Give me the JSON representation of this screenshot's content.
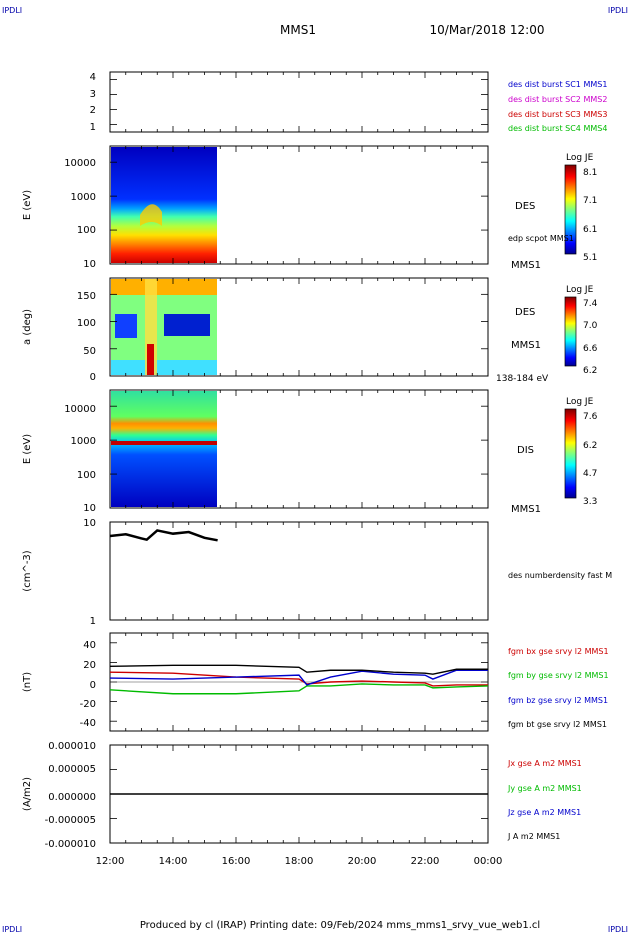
{
  "header": {
    "logo_left": "IPDLI",
    "logo_right": "IPDLI",
    "title": "MMS1",
    "datetime": "10/Mar/2018 12:00"
  },
  "footer": {
    "logo_left": "IPDLI",
    "logo_right": "IPDLI",
    "text": "Produced by cl (IRAP)   Printing date: 09/Feb/2024   mms_mms1_srvy_vue_web1.cl"
  },
  "colors": {
    "blue": "#0000cc",
    "magenta": "#cc00cc",
    "red": "#cc0000",
    "green": "#00bb00",
    "black": "#000000",
    "frame": "#000000"
  },
  "chart_data": [
    {
      "type": "line",
      "panel": "availability",
      "ylim": [
        0.5,
        4.5
      ],
      "yticks": [
        "1",
        "2",
        "3",
        "4"
      ],
      "ylabel": "",
      "series": [
        {
          "name": "des dist burst SC1 MMS1",
          "color": "#0000cc",
          "values": []
        },
        {
          "name": "des dist burst SC2 MMS2",
          "color": "#cc00cc",
          "values": []
        },
        {
          "name": "des dist burst SC3 MMS3",
          "color": "#cc0000",
          "values": []
        },
        {
          "name": "des dist burst SC4 MMS4",
          "color": "#00bb00",
          "values": []
        }
      ]
    },
    {
      "type": "heatmap",
      "panel": "des-energy",
      "ylabel": "E (eV)",
      "yscale": "log",
      "yticks": [
        "10",
        "100",
        "1000",
        "10000"
      ],
      "ylim": [
        10,
        30000
      ],
      "data_x_range": [
        "12:00",
        "15:25"
      ],
      "right_labels": [
        "DES",
        "edp scpot MMS1",
        "MMS1"
      ],
      "colorbar": {
        "title": "Log JE",
        "ticks": [
          "8.1",
          "7.1",
          "6.1",
          "5.1"
        ],
        "range": [
          5.1,
          8.1
        ]
      }
    },
    {
      "type": "heatmap",
      "panel": "des-pitch",
      "ylabel": "a (deg)",
      "yticks": [
        "0",
        "50",
        "100",
        "150"
      ],
      "ylim": [
        0,
        180
      ],
      "data_x_range": [
        "12:00",
        "15:25"
      ],
      "right_labels": [
        "DES",
        "MMS1",
        "138-184 eV"
      ],
      "colorbar": {
        "title": "Log JE",
        "ticks": [
          "7.4",
          "7.0",
          "6.6",
          "6.2"
        ],
        "range": [
          6.2,
          7.4
        ]
      }
    },
    {
      "type": "heatmap",
      "panel": "dis-energy",
      "ylabel": "E (eV)",
      "yscale": "log",
      "yticks": [
        "10",
        "100",
        "1000",
        "10000"
      ],
      "ylim": [
        10,
        30000
      ],
      "data_x_range": [
        "12:00",
        "15:25"
      ],
      "right_labels": [
        "DIS",
        "MMS1"
      ],
      "colorbar": {
        "title": "Log JE",
        "ticks": [
          "7.6",
          "6.2",
          "4.7",
          "3.3"
        ],
        "range": [
          3.3,
          7.6
        ]
      }
    },
    {
      "type": "line",
      "panel": "density",
      "ylabel": "(cm^-3)",
      "yscale": "log",
      "yticks": [
        "1",
        "10"
      ],
      "ylim": [
        1,
        10
      ],
      "series": [
        {
          "name": "des numberdensity fast M",
          "color": "#000000",
          "x": [
            "12:00",
            "12:30",
            "13:00",
            "13:10",
            "13:30",
            "14:00",
            "14:30",
            "15:00",
            "15:25"
          ],
          "values": [
            7.2,
            7.5,
            6.8,
            6.6,
            8.2,
            7.6,
            7.9,
            6.9,
            6.5
          ]
        }
      ]
    },
    {
      "type": "line",
      "panel": "magnetic-field",
      "ylabel": "(nT)",
      "yticks": [
        "-40",
        "-20",
        "0",
        "20",
        "40"
      ],
      "ylim": [
        -50,
        50
      ],
      "x": [
        "12:00",
        "14:00",
        "16:00",
        "18:00",
        "18:15",
        "19:00",
        "20:00",
        "21:00",
        "22:00",
        "22:15",
        "23:00",
        "00:00"
      ],
      "series": [
        {
          "name": "fgm bx gse srvy l2 MMS1",
          "color": "#cc0000",
          "values": [
            10,
            9,
            5,
            3,
            -2,
            0,
            1,
            0,
            -1,
            -4,
            -3,
            -3
          ]
        },
        {
          "name": "fgm by gse srvy l2 MMS1",
          "color": "#00bb00",
          "values": [
            -8,
            -12,
            -12,
            -9,
            -4,
            -4,
            -2,
            -3,
            -3,
            -6,
            -5,
            -4
          ]
        },
        {
          "name": "fgm bz gse srvy l2 MMS1",
          "color": "#0000cc",
          "values": [
            4,
            3,
            5,
            7,
            -3,
            5,
            11,
            8,
            7,
            3,
            12,
            12
          ]
        },
        {
          "name": "fgm bt gse srvy l2 MMS1",
          "color": "#000000",
          "values": [
            16,
            17,
            17,
            15,
            10,
            12,
            12,
            10,
            9,
            8,
            13,
            13
          ]
        }
      ]
    },
    {
      "type": "line",
      "panel": "current",
      "ylabel": "(A/m2)",
      "yticks": [
        "-0.000010",
        "-0.000005",
        "0.000000",
        "0.000005",
        "0.000010"
      ],
      "ylim": [
        -1e-05,
        1e-05
      ],
      "xticks": [
        "12:00",
        "14:00",
        "16:00",
        "18:00",
        "20:00",
        "22:00",
        "00:00"
      ],
      "series": [
        {
          "name": "Jx gse A m2 MMS1",
          "color": "#cc0000",
          "values": []
        },
        {
          "name": "Jy gse A m2 MMS1",
          "color": "#00bb00",
          "values": []
        },
        {
          "name": "Jz gse A m2 MMS1",
          "color": "#0000cc",
          "values": []
        },
        {
          "name": "J A m2 MMS1",
          "color": "#000000",
          "values": []
        }
      ]
    }
  ]
}
